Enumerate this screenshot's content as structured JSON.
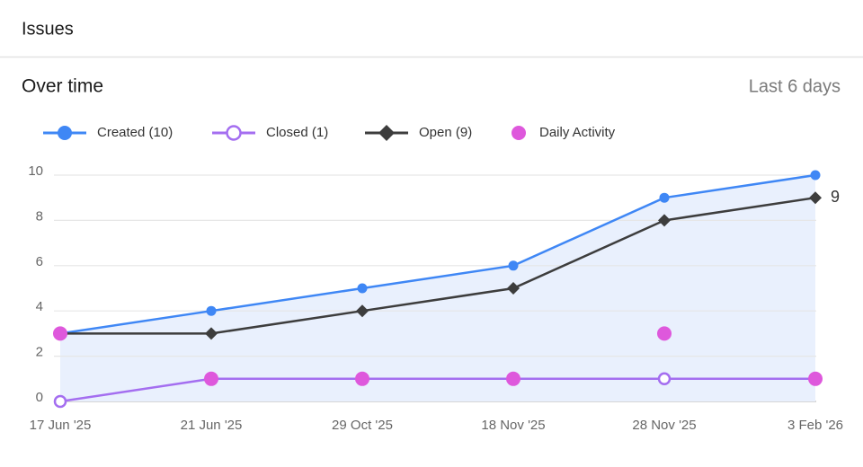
{
  "header": {
    "title": "Issues"
  },
  "panel": {
    "title": "Over time",
    "range": "Last 6 days"
  },
  "chart_data": {
    "type": "line",
    "categories": [
      "17 Jun '25",
      "21 Jun '25",
      "29 Oct '25",
      "18 Nov '25",
      "28 Nov '25",
      "3 Feb '26"
    ],
    "series": [
      {
        "name": "Created (10)",
        "color": "#3f87f5",
        "values": [
          3,
          4,
          5,
          6,
          9,
          10
        ],
        "marker": "circle",
        "line": true,
        "area": true
      },
      {
        "name": "Closed (1)",
        "color": "#a46ef0",
        "values": [
          0,
          1,
          1,
          1,
          1,
          1
        ],
        "marker": "hollow-circle",
        "line": true
      },
      {
        "name": "Open (9)",
        "color": "#3d3d3d",
        "values": [
          3,
          3,
          4,
          5,
          8,
          9
        ],
        "marker": "diamond",
        "line": true,
        "end_label": true
      },
      {
        "name": "Daily Activity",
        "color": "#de58dc",
        "values": [
          3,
          1,
          1,
          1,
          3,
          1
        ],
        "marker": "big-circle",
        "line": false
      }
    ],
    "ylim": [
      0,
      10
    ],
    "yticks": [
      0,
      2,
      4,
      6,
      8,
      10
    ],
    "grid": true,
    "legend": "top"
  }
}
